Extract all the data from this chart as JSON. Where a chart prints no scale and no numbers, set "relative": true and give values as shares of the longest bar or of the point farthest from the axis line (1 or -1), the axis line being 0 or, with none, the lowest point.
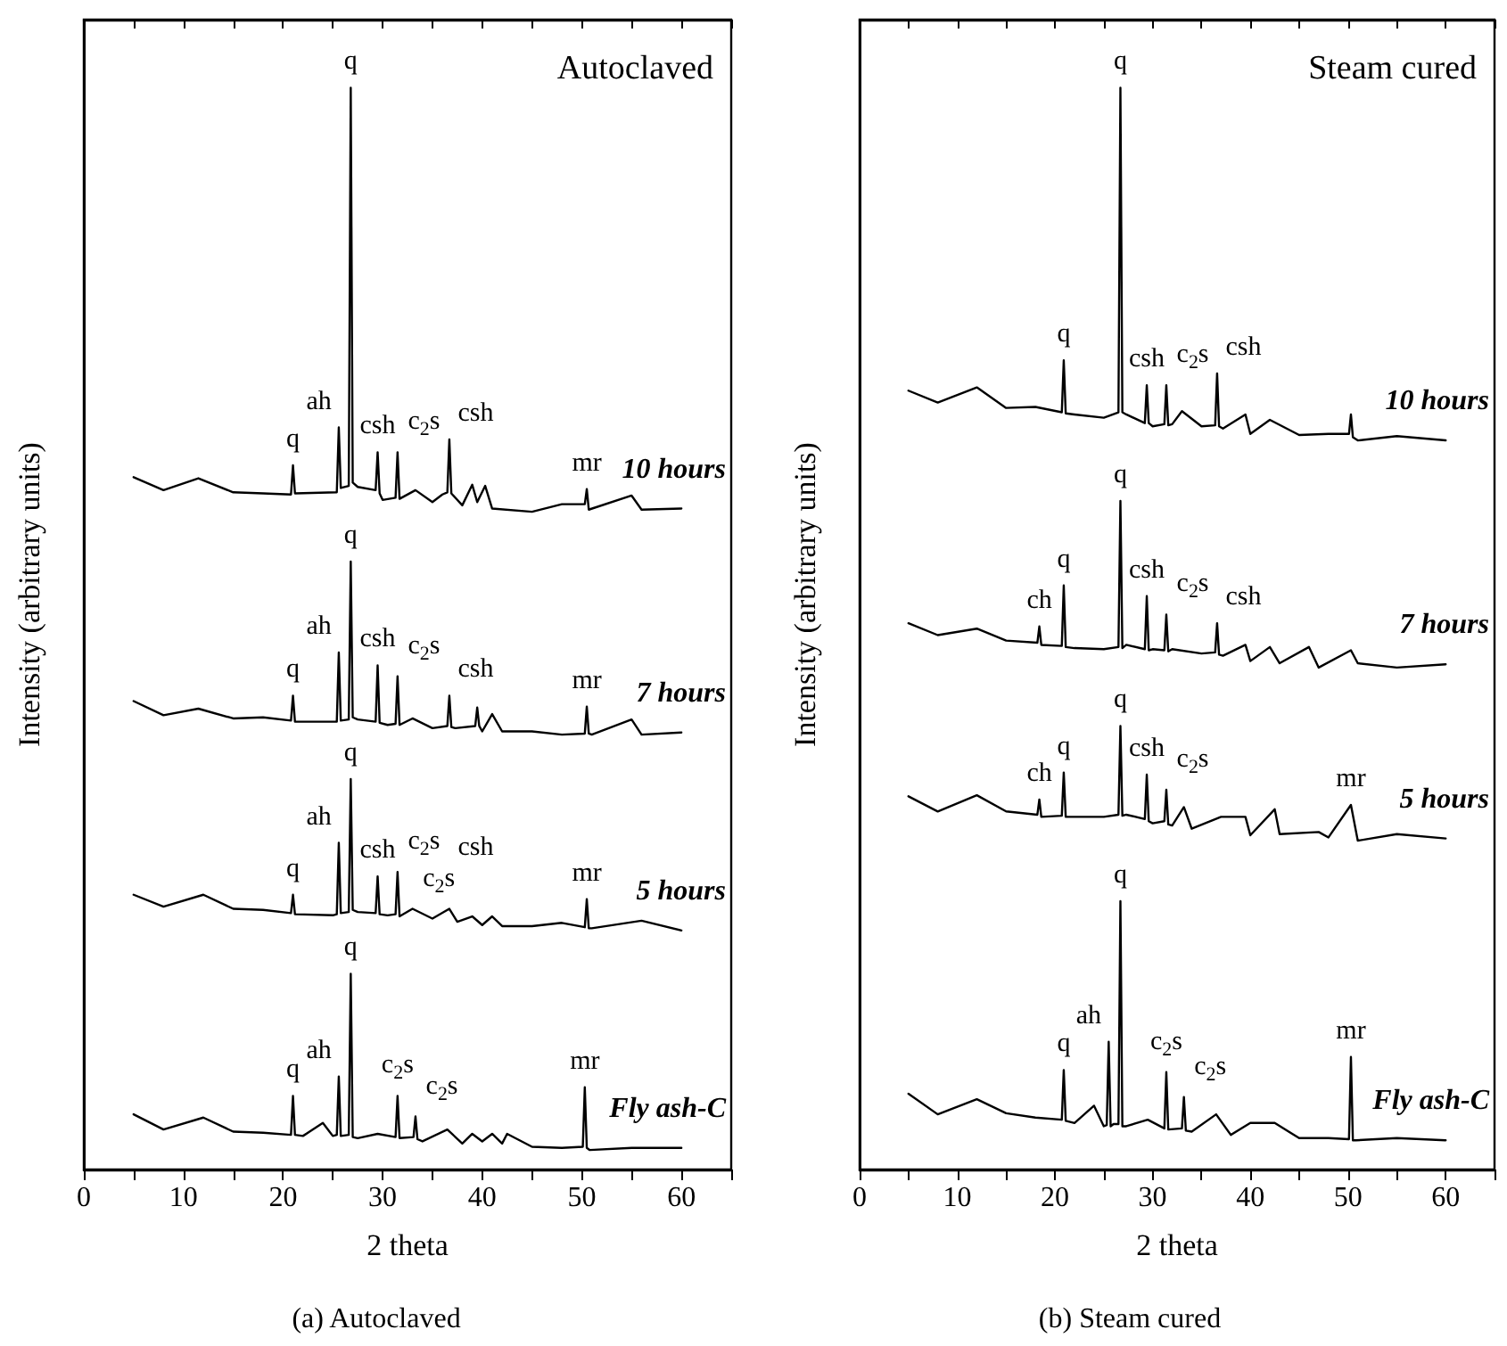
{
  "chart_data": [
    {
      "type": "line",
      "title": "(a) Autoclaved",
      "xlabel": "2 theta",
      "ylabel": "Intensity (arbitrary units)",
      "relative": true,
      "marker": "none",
      "line_style": "solid",
      "xlim": [
        0,
        65
      ],
      "xticks": [
        0,
        {
          "value": 5,
          "label": null
        },
        10,
        {
          "value": 15,
          "label": null
        },
        20,
        {
          "value": 25,
          "label": null
        },
        30,
        {
          "value": 35,
          "label": null
        },
        40,
        {
          "value": 45,
          "label": null
        },
        50,
        {
          "value": 55,
          "label": null
        },
        60,
        {
          "value": 65,
          "label": null
        }
      ],
      "series": [
        {
          "name": "10 hours",
          "color": "#000000",
          "x": [
            5,
            8,
            11.5,
            15,
            18,
            20.8,
            21,
            21.2,
            25.4,
            25.6,
            25.8,
            26.6,
            26.8,
            27.0,
            27.5,
            29.3,
            29.5,
            29.7,
            30,
            31.3,
            31.5,
            31.7,
            33.3,
            35,
            36,
            36.5,
            36.7,
            36.9,
            38,
            39,
            39.5,
            40.3,
            41,
            45,
            48,
            50.3,
            50.5,
            50.7,
            55,
            56,
            60
          ],
          "values": [
            0.64,
            0.628,
            0.639,
            0.626,
            0.625,
            0.624,
            0.651,
            0.625,
            0.626,
            0.686,
            0.63,
            0.632,
            1.0,
            0.635,
            0.631,
            0.628,
            0.663,
            0.625,
            0.619,
            0.621,
            0.663,
            0.62,
            0.628,
            0.617,
            0.624,
            0.626,
            0.675,
            0.625,
            0.614,
            0.633,
            0.617,
            0.632,
            0.611,
            0.608,
            0.615,
            0.615,
            0.629,
            0.61,
            0.623,
            0.61,
            0.611
          ]
        },
        {
          "name": "7 hours",
          "color": "#000000",
          "x": [
            5,
            8,
            11.5,
            15,
            18,
            20.8,
            21,
            21.2,
            25.4,
            25.6,
            25.8,
            26.6,
            26.8,
            27.0,
            27.5,
            29.3,
            29.5,
            29.7,
            30.5,
            31.3,
            31.5,
            31.7,
            33,
            35,
            36.5,
            36.7,
            36.9,
            37.3,
            39.3,
            39.5,
            39.7,
            40,
            41,
            42,
            45,
            48,
            50.3,
            50.5,
            50.7,
            51,
            55,
            56,
            60
          ],
          "values": [
            0.433,
            0.42,
            0.426,
            0.417,
            0.418,
            0.415,
            0.438,
            0.414,
            0.414,
            0.478,
            0.415,
            0.416,
            0.562,
            0.418,
            0.416,
            0.414,
            0.466,
            0.413,
            0.411,
            0.412,
            0.456,
            0.411,
            0.417,
            0.408,
            0.41,
            0.438,
            0.409,
            0.408,
            0.41,
            0.427,
            0.41,
            0.405,
            0.421,
            0.405,
            0.405,
            0.402,
            0.403,
            0.428,
            0.403,
            0.402,
            0.416,
            0.402,
            0.404
          ]
        },
        {
          "name": "5 hours",
          "color": "#000000",
          "x": [
            5,
            8,
            12,
            15,
            18,
            20.8,
            21,
            21.2,
            25,
            25.4,
            25.6,
            25.8,
            26.6,
            26.8,
            27.0,
            27.5,
            29.3,
            29.5,
            29.7,
            30.5,
            31.3,
            31.5,
            31.7,
            33,
            35,
            36.7,
            37.5,
            39,
            40,
            41,
            42,
            45,
            48,
            50.3,
            50.5,
            50.7,
            51,
            56,
            60
          ],
          "values": [
            0.254,
            0.243,
            0.254,
            0.241,
            0.24,
            0.237,
            0.254,
            0.236,
            0.235,
            0.236,
            0.302,
            0.237,
            0.238,
            0.361,
            0.24,
            0.238,
            0.237,
            0.271,
            0.236,
            0.235,
            0.236,
            0.275,
            0.234,
            0.241,
            0.232,
            0.241,
            0.229,
            0.234,
            0.226,
            0.234,
            0.225,
            0.225,
            0.228,
            0.224,
            0.25,
            0.223,
            0.223,
            0.23,
            0.221
          ]
        },
        {
          "name": "Fly ash-C",
          "color": "#000000",
          "x": [
            5,
            8,
            12,
            15,
            18,
            20.8,
            21,
            21.2,
            22,
            24,
            25,
            25.4,
            25.6,
            25.8,
            26.6,
            26.8,
            27.0,
            27.5,
            29.5,
            31.3,
            31.5,
            31.7,
            33.1,
            33.3,
            33.5,
            34,
            36.5,
            38,
            39,
            40,
            41,
            42,
            42.5,
            45,
            48,
            50.1,
            50.3,
            50.5,
            50.8,
            55,
            60
          ],
          "values": [
            0.051,
            0.037,
            0.048,
            0.035,
            0.034,
            0.032,
            0.068,
            0.032,
            0.031,
            0.043,
            0.031,
            0.032,
            0.086,
            0.031,
            0.032,
            0.181,
            0.03,
            0.029,
            0.033,
            0.03,
            0.068,
            0.029,
            0.03,
            0.049,
            0.028,
            0.026,
            0.037,
            0.024,
            0.033,
            0.026,
            0.033,
            0.024,
            0.033,
            0.021,
            0.02,
            0.021,
            0.076,
            0.02,
            0.018,
            0.02,
            0.02
          ]
        }
      ],
      "annotations": [
        "Autoclaved",
        {
          "text": "q",
          "x": 21,
          "y": 0.651
        },
        {
          "text": "ah",
          "x": 25.6,
          "y": 0.686
        },
        {
          "text": "q",
          "x": 26.8,
          "y": 1.0
        },
        {
          "text": "csh",
          "x": 29.5,
          "y": 0.663
        },
        {
          "text": "c$_{2}$s",
          "x": 31.5,
          "y": 0.663
        },
        {
          "text": "csh",
          "x": 36.7,
          "y": 0.675
        },
        {
          "text": "mr",
          "x": 50.5,
          "y": 0.629
        },
        {
          "text": "q",
          "x": 21,
          "y": 0.438
        },
        {
          "text": "ah",
          "x": 25.6,
          "y": 0.478
        },
        {
          "text": "q",
          "x": 26.8,
          "y": 0.562
        },
        {
          "text": "csh",
          "x": 29.5,
          "y": 0.466
        },
        {
          "text": "c$_{2}$s",
          "x": 31.5,
          "y": 0.456
        },
        {
          "text": "csh",
          "x": 36.7,
          "y": 0.438
        },
        {
          "text": "mr",
          "x": 50.5,
          "y": 0.428
        },
        {
          "text": "q",
          "x": 21,
          "y": 0.254
        },
        {
          "text": "ah",
          "x": 25.6,
          "y": 0.302
        },
        {
          "text": "q",
          "x": 26.8,
          "y": 0.361
        },
        {
          "text": "csh",
          "x": 29.5,
          "y": 0.271
        },
        {
          "text": "c$_{2}$s",
          "x": 31.5,
          "y": 0.275
        },
        {
          "text": "c$_{2}$s",
          "x": 33,
          "y": 0.241
        },
        {
          "text": "csh",
          "x": 36.7,
          "y": 0.241
        },
        {
          "text": "mr",
          "x": 50.5,
          "y": 0.25
        },
        {
          "text": "q",
          "x": 21,
          "y": 0.068
        },
        {
          "text": "ah",
          "x": 25.6,
          "y": 0.086
        },
        {
          "text": "q",
          "x": 26.8,
          "y": 0.181
        },
        {
          "text": "c$_{2}$s",
          "x": 31.5,
          "y": 0.068
        },
        {
          "text": "c$_{2}$s",
          "x": 33.3,
          "y": 0.049
        },
        {
          "text": "mr",
          "x": 50.3,
          "y": 0.076
        }
      ]
    },
    {
      "type": "line",
      "title": "(b) Steam cured",
      "xlabel": "2 theta",
      "ylabel": "Intensity (arbitrary units)",
      "relative": true,
      "marker": "none",
      "line_style": "solid",
      "xlim": [
        0,
        65
      ],
      "xticks": [
        0,
        {
          "value": 5,
          "label": null
        },
        10,
        {
          "value": 15,
          "label": null
        },
        20,
        {
          "value": 25,
          "label": null
        },
        30,
        {
          "value": 35,
          "label": null
        },
        40,
        {
          "value": 45,
          "label": null
        },
        50,
        {
          "value": 55,
          "label": null
        },
        60,
        {
          "value": 65,
          "label": null
        }
      ],
      "series": [
        {
          "name": "10 hours",
          "color": "#000000",
          "x": [
            5,
            8,
            12,
            15,
            18,
            20.7,
            20.9,
            21.1,
            22,
            25,
            26.5,
            26.7,
            26.9,
            27.3,
            29.2,
            29.4,
            29.6,
            30,
            31.2,
            31.4,
            31.6,
            32,
            33,
            35,
            36.4,
            36.6,
            36.8,
            37.2,
            39.5,
            40,
            42,
            45,
            48,
            50.1,
            50.3,
            50.5,
            51,
            55,
            60
          ],
          "values": [
            0.72,
            0.709,
            0.723,
            0.704,
            0.705,
            0.7,
            0.748,
            0.699,
            0.698,
            0.695,
            0.7,
            1.0,
            0.7,
            0.698,
            0.69,
            0.725,
            0.69,
            0.687,
            0.689,
            0.725,
            0.688,
            0.689,
            0.701,
            0.687,
            0.688,
            0.736,
            0.687,
            0.685,
            0.698,
            0.68,
            0.693,
            0.679,
            0.68,
            0.68,
            0.698,
            0.677,
            0.674,
            0.678,
            0.674
          ]
        },
        {
          "name": "7 hours",
          "color": "#000000",
          "x": [
            5,
            8,
            12,
            15,
            18.2,
            18.4,
            18.6,
            20.7,
            20.9,
            21.1,
            22,
            25,
            26.5,
            26.7,
            26.9,
            27.3,
            29.2,
            29.4,
            29.6,
            30,
            31.2,
            31.4,
            31.6,
            32,
            35,
            36.4,
            36.6,
            36.8,
            37.2,
            39.5,
            40,
            42,
            43,
            46,
            47,
            50.3,
            51,
            55,
            60
          ],
          "values": [
            0.505,
            0.494,
            0.5,
            0.489,
            0.487,
            0.502,
            0.485,
            0.484,
            0.54,
            0.483,
            0.482,
            0.481,
            0.483,
            0.618,
            0.482,
            0.485,
            0.481,
            0.53,
            0.48,
            0.481,
            0.48,
            0.513,
            0.479,
            0.481,
            0.477,
            0.478,
            0.505,
            0.476,
            0.475,
            0.485,
            0.47,
            0.483,
            0.468,
            0.483,
            0.464,
            0.48,
            0.468,
            0.464,
            0.467
          ]
        },
        {
          "name": "5 hours",
          "color": "#000000",
          "x": [
            5,
            8,
            12,
            15,
            18.2,
            18.4,
            18.6,
            20.7,
            20.9,
            21.1,
            22,
            25,
            26.5,
            26.7,
            26.9,
            27.3,
            29.2,
            29.4,
            29.6,
            30,
            31.2,
            31.4,
            31.6,
            32,
            33.2,
            34,
            37,
            39.5,
            40,
            42.5,
            43,
            47,
            48,
            50.3,
            51,
            55,
            60
          ],
          "values": [
            0.345,
            0.331,
            0.346,
            0.331,
            0.328,
            0.342,
            0.326,
            0.327,
            0.367,
            0.326,
            0.326,
            0.326,
            0.328,
            0.41,
            0.327,
            0.328,
            0.324,
            0.365,
            0.322,
            0.32,
            0.322,
            0.351,
            0.319,
            0.318,
            0.335,
            0.315,
            0.326,
            0.326,
            0.309,
            0.333,
            0.31,
            0.312,
            0.307,
            0.337,
            0.304,
            0.31,
            0.306
          ]
        },
        {
          "name": "Fly ash-C",
          "color": "#000000",
          "x": [
            5,
            8,
            12,
            15,
            18,
            20.7,
            20.9,
            21.1,
            22,
            24,
            25,
            25.3,
            25.5,
            25.7,
            26,
            26.5,
            26.7,
            26.9,
            27.3,
            29.5,
            31.2,
            31.4,
            31.6,
            33,
            33.2,
            33.4,
            34,
            36.5,
            38,
            40,
            42.5,
            45,
            48,
            50.1,
            50.3,
            50.5,
            50.8,
            55,
            60
          ],
          "values": [
            0.07,
            0.051,
            0.065,
            0.052,
            0.048,
            0.046,
            0.092,
            0.045,
            0.043,
            0.059,
            0.04,
            0.041,
            0.118,
            0.04,
            0.042,
            0.042,
            0.248,
            0.04,
            0.04,
            0.046,
            0.038,
            0.09,
            0.037,
            0.038,
            0.067,
            0.036,
            0.035,
            0.051,
            0.032,
            0.043,
            0.043,
            0.029,
            0.029,
            0.028,
            0.104,
            0.027,
            0.027,
            0.029,
            0.027
          ]
        }
      ],
      "annotations": [
        "Steam cured",
        {
          "text": "q",
          "x": 20.9,
          "y": 0.748
        },
        {
          "text": "q",
          "x": 26.7,
          "y": 1.0
        },
        {
          "text": "csh",
          "x": 29.4,
          "y": 0.725
        },
        {
          "text": "c$_{2}$s",
          "x": 31.4,
          "y": 0.725
        },
        {
          "text": "csh",
          "x": 36.6,
          "y": 0.736
        },
        {
          "text": "ch",
          "x": 18.4,
          "y": 0.502
        },
        {
          "text": "q",
          "x": 20.9,
          "y": 0.54
        },
        {
          "text": "q",
          "x": 26.7,
          "y": 0.618
        },
        {
          "text": "csh",
          "x": 29.4,
          "y": 0.53
        },
        {
          "text": "c$_{2}$s",
          "x": 31.4,
          "y": 0.513
        },
        {
          "text": "csh",
          "x": 36.6,
          "y": 0.505
        },
        {
          "text": "ch",
          "x": 18.4,
          "y": 0.342
        },
        {
          "text": "q",
          "x": 20.9,
          "y": 0.367
        },
        {
          "text": "q",
          "x": 26.7,
          "y": 0.41
        },
        {
          "text": "csh",
          "x": 29.4,
          "y": 0.365
        },
        {
          "text": "c$_{2}$s",
          "x": 31.4,
          "y": 0.351
        },
        {
          "text": "mr",
          "x": 50.3,
          "y": 0.337
        },
        {
          "text": "q",
          "x": 20.9,
          "y": 0.092
        },
        {
          "text": "ah",
          "x": 25.5,
          "y": 0.118
        },
        {
          "text": "q",
          "x": 26.7,
          "y": 0.248
        },
        {
          "text": "c$_{2}$s",
          "x": 31.4,
          "y": 0.09
        },
        {
          "text": "c$_{2}$s",
          "x": 33.2,
          "y": 0.067
        },
        {
          "text": "mr",
          "x": 50.3,
          "y": 0.104
        }
      ]
    }
  ]
}
